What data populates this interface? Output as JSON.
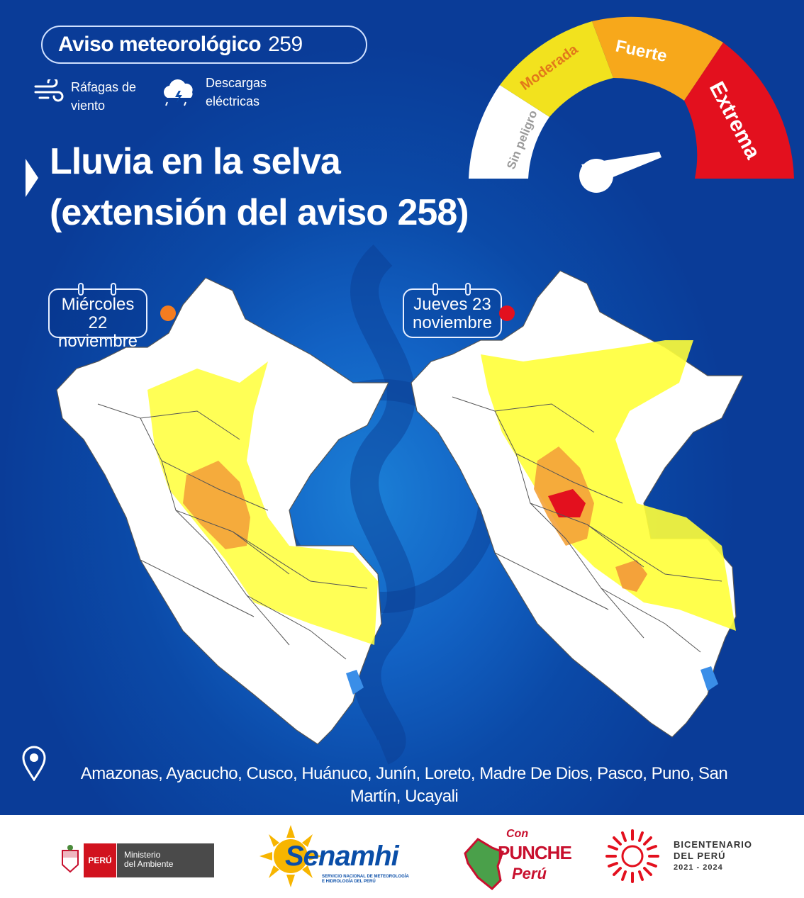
{
  "header": {
    "title": "Aviso meteorológico",
    "number": "259"
  },
  "hazards": [
    {
      "icon": "wind-icon",
      "label_line1": "Ráfagas de",
      "label_line2": "viento"
    },
    {
      "icon": "storm-cloud-icon",
      "label_line1": "Descargas",
      "label_line2": "eléctricas"
    }
  ],
  "title": {
    "line1": "Lluvia en la selva",
    "line2": "(extensión del aviso 258)"
  },
  "gauge": {
    "levels": [
      {
        "label": "Sin peligro",
        "color": "#ffffff"
      },
      {
        "label": "Moderada",
        "color": "#f2e21e"
      },
      {
        "label": "Fuerte",
        "color": "#f7a81b"
      },
      {
        "label": "Extrema",
        "color": "#e3101e"
      }
    ]
  },
  "maps": [
    {
      "day_line1": "Miércoles 22",
      "day_line2": "noviembre",
      "level_color": "#f47c20"
    },
    {
      "day_line1": "Jueves 23",
      "day_line2": "noviembre",
      "level_color": "#e3101e"
    }
  ],
  "regions_line1": "Amazonas, Ayacucho, Cusco, Huánuco, Junín, Loreto, Madre De Dios, Pasco, Puno, San",
  "regions_line2": "Martín, Ucayali",
  "footer": {
    "peru_label": "PERÚ",
    "ministry_line1": "Ministerio",
    "ministry_line2": "del Ambiente",
    "senamhi_name": "Senamhi",
    "senamhi_sub1": "SERVICIO NACIONAL DE METEOROLOGÍA",
    "senamhi_sub2": "E HIDROLOGÍA DEL PERÚ",
    "punche_line1": "Con",
    "punche_line2": "PUNCHE",
    "punche_line3": "Perú",
    "bicentenario_line1": "BICENTENARIO",
    "bicentenario_line2": "DEL PERÚ",
    "bicentenario_years": "2021 - 2024"
  }
}
